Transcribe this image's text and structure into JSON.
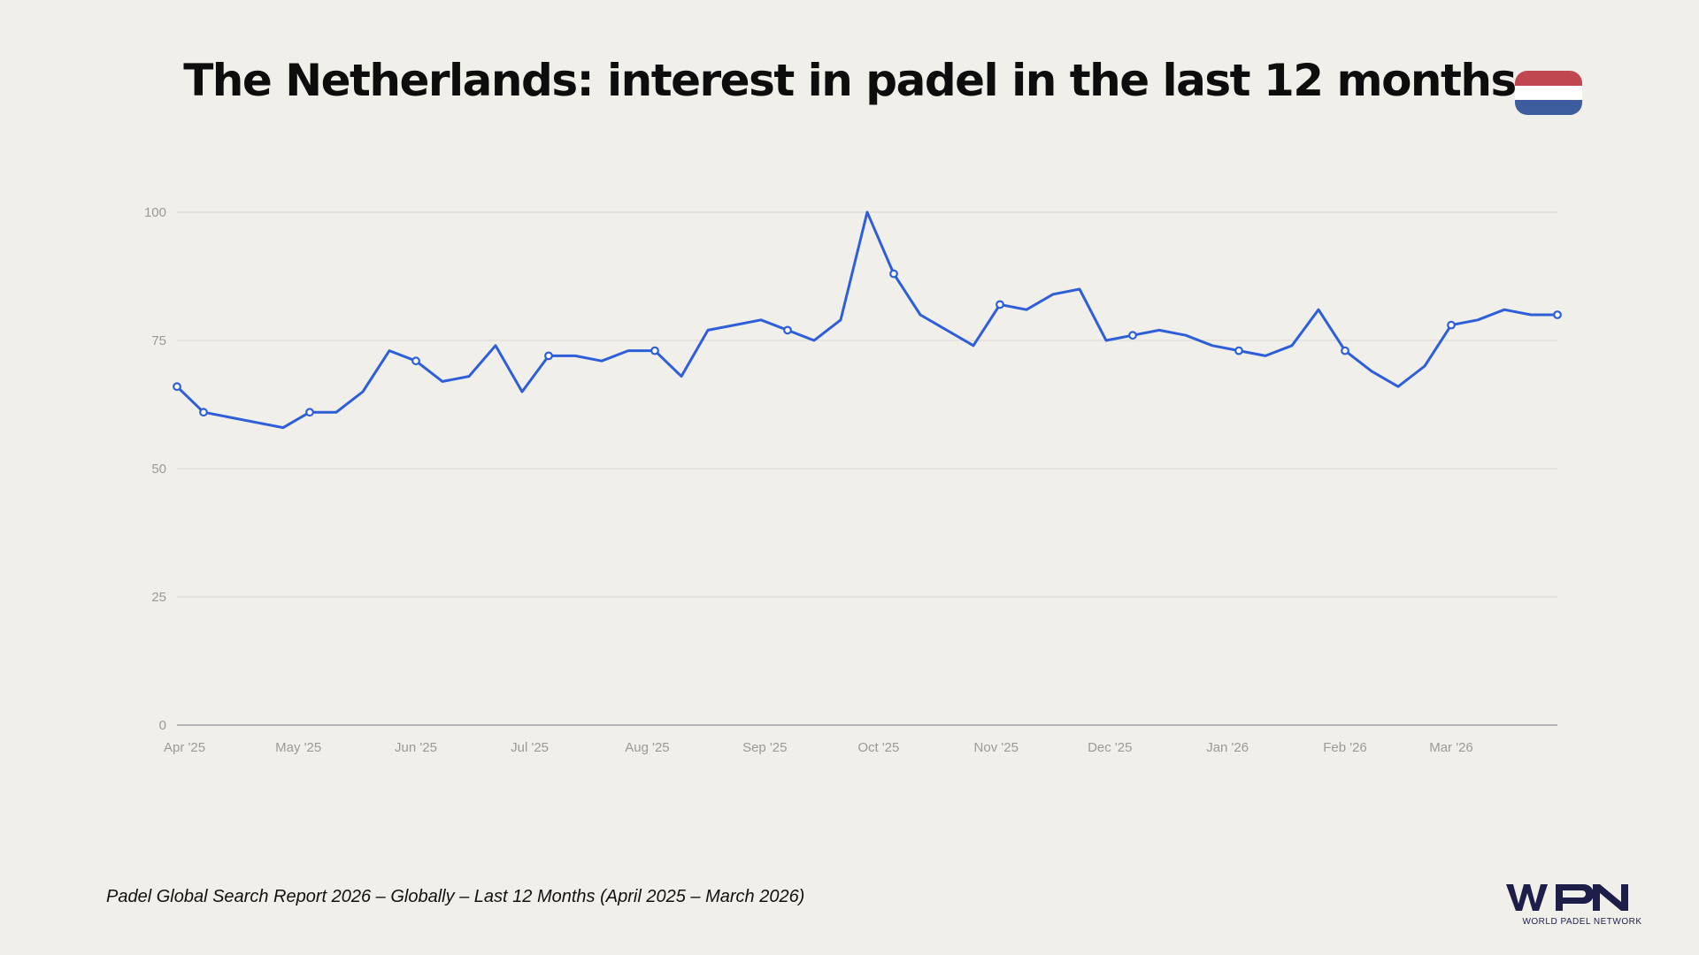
{
  "title": "The Netherlands: interest in padel in the last 12 months",
  "flag": {
    "name": "netherlands-flag",
    "colors": [
      "#c0464f",
      "#ffffff",
      "#3e5d9e"
    ]
  },
  "footer": "Padel Global Search Report 2026 – Globally – Last 12 Months (April 2025 – March 2026)",
  "logo": {
    "text": "WPN",
    "subtitle": "WORLD PADEL NETWORK",
    "color": "#1d1f4a"
  },
  "chart_data": {
    "type": "line",
    "title": "",
    "xlabel": "",
    "ylabel": "",
    "ylim": [
      0,
      100
    ],
    "yticks": [
      0,
      25,
      50,
      75,
      100
    ],
    "grid": true,
    "line_color": "#2e5fd8",
    "x": [
      "2025-03-30",
      "2025-04-06",
      "2025-04-13",
      "2025-04-20",
      "2025-04-27",
      "2025-05-04",
      "2025-05-11",
      "2025-05-18",
      "2025-05-25",
      "2025-06-01",
      "2025-06-08",
      "2025-06-15",
      "2025-06-22",
      "2025-06-29",
      "2025-07-06",
      "2025-07-13",
      "2025-07-20",
      "2025-07-27",
      "2025-08-03",
      "2025-08-10",
      "2025-08-17",
      "2025-08-24",
      "2025-08-31",
      "2025-09-07",
      "2025-09-14",
      "2025-09-21",
      "2025-09-28",
      "2025-10-05",
      "2025-10-12",
      "2025-10-19",
      "2025-10-26",
      "2025-11-02",
      "2025-11-09",
      "2025-11-16",
      "2025-11-23",
      "2025-11-30",
      "2025-12-07",
      "2025-12-14",
      "2025-12-21",
      "2025-12-28",
      "2026-01-04",
      "2026-01-11",
      "2026-01-18",
      "2026-01-25",
      "2026-02-01",
      "2026-02-08",
      "2026-02-15",
      "2026-02-22",
      "2026-03-01",
      "2026-03-08",
      "2026-03-15",
      "2026-03-22",
      "2026-03-29"
    ],
    "values": [
      66,
      61,
      60,
      59,
      58,
      61,
      61,
      65,
      73,
      71,
      67,
      68,
      74,
      65,
      72,
      72,
      71,
      73,
      73,
      68,
      77,
      78,
      79,
      77,
      75,
      79,
      100,
      88,
      80,
      77,
      74,
      82,
      81,
      84,
      85,
      75,
      76,
      77,
      76,
      74,
      73,
      72,
      74,
      81,
      73,
      69,
      66,
      70,
      78,
      79,
      81,
      80,
      80
    ],
    "marked_points": [
      0,
      1,
      5,
      9,
      14,
      18,
      23,
      27,
      31,
      36,
      40,
      44,
      48,
      52
    ],
    "xticks": [
      {
        "date": "2025-04-01",
        "label": "Apr '25"
      },
      {
        "date": "2025-05-01",
        "label": "May '25"
      },
      {
        "date": "2025-06-01",
        "label": "Jun '25"
      },
      {
        "date": "2025-07-01",
        "label": "Jul '25"
      },
      {
        "date": "2025-08-01",
        "label": "Aug '25"
      },
      {
        "date": "2025-09-01",
        "label": "Sep '25"
      },
      {
        "date": "2025-10-01",
        "label": "Oct '25"
      },
      {
        "date": "2025-11-01",
        "label": "Nov '25"
      },
      {
        "date": "2025-12-01",
        "label": "Dec '25"
      },
      {
        "date": "2026-01-01",
        "label": "Jan '26"
      },
      {
        "date": "2026-02-01",
        "label": "Feb '26"
      },
      {
        "date": "2026-03-01",
        "label": "Mar '26"
      }
    ]
  }
}
